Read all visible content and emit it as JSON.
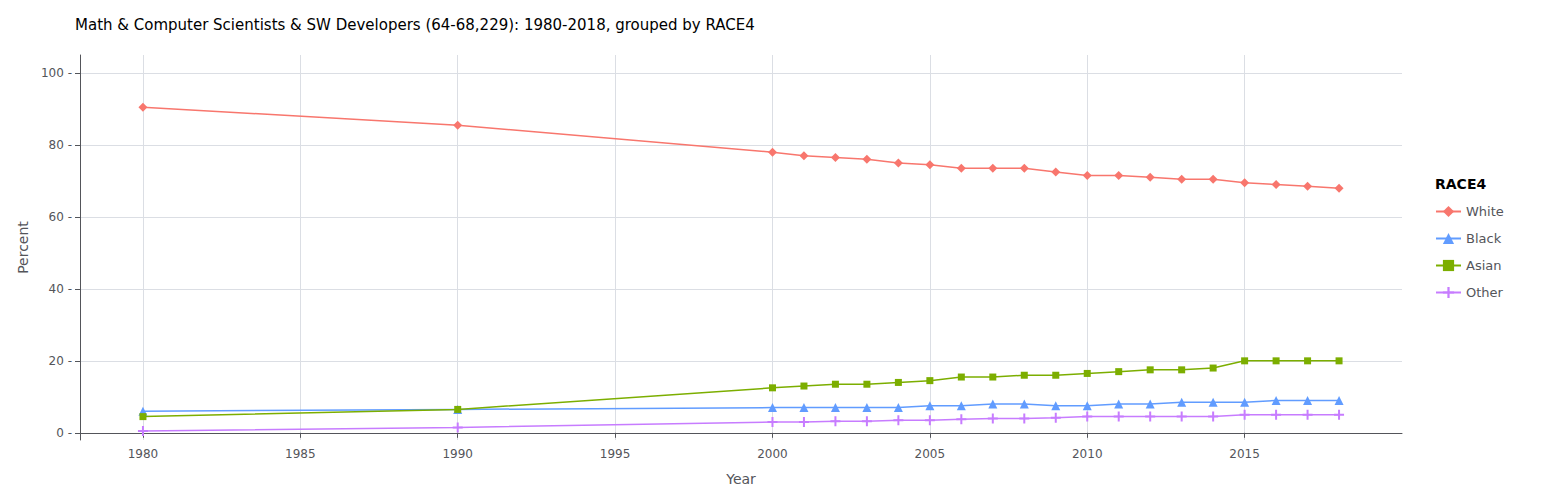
{
  "chart_data": {
    "type": "line",
    "title": "Math & Computer Scientists & SW Developers (64-68,229): 1980-2018, grouped by RACE4",
    "xlabel": "Year",
    "ylabel": "Percent",
    "legend_title": "RACE4",
    "legend": "right",
    "grid": true,
    "x": [
      1980,
      1990,
      2000,
      2001,
      2002,
      2003,
      2004,
      2005,
      2006,
      2007,
      2008,
      2009,
      2010,
      2011,
      2012,
      2013,
      2014,
      2015,
      2016,
      2017,
      2018
    ],
    "series": [
      {
        "name": "White",
        "color": "#F8766D",
        "marker": "diamond",
        "values": [
          90.5,
          85.5,
          78.0,
          77.0,
          76.5,
          76.0,
          75.0,
          74.5,
          73.5,
          73.5,
          73.5,
          72.5,
          71.5,
          71.5,
          71.0,
          70.5,
          70.5,
          69.5,
          69.0,
          68.5,
          68.0
        ]
      },
      {
        "name": "Black",
        "color": "#619CFF",
        "marker": "triangle",
        "values": [
          6.0,
          6.5,
          7.0,
          7.0,
          7.0,
          7.0,
          7.0,
          7.5,
          7.5,
          8.0,
          8.0,
          7.5,
          7.5,
          8.0,
          8.0,
          8.5,
          8.5,
          8.5,
          9.0,
          9.0,
          9.0
        ]
      },
      {
        "name": "Asian",
        "color": "#7CAE00",
        "marker": "square",
        "values": [
          4.5,
          6.5,
          12.5,
          13.0,
          13.5,
          13.5,
          14.0,
          14.5,
          15.5,
          15.5,
          16.0,
          16.0,
          16.5,
          17.0,
          17.5,
          17.5,
          18.0,
          20.0,
          20.0,
          20.0,
          20.0
        ]
      },
      {
        "name": "Other",
        "color": "#C77CFF",
        "marker": "plus",
        "values": [
          0.5,
          1.5,
          3.0,
          3.0,
          3.2,
          3.2,
          3.5,
          3.5,
          3.8,
          4.0,
          4.0,
          4.2,
          4.5,
          4.5,
          4.5,
          4.5,
          4.5,
          5.0,
          5.0,
          5.0,
          5.0
        ]
      }
    ],
    "xlim": [
      1978,
      2020
    ],
    "xticks": [
      1980,
      1985,
      1990,
      1995,
      2000,
      2005,
      2010,
      2015
    ],
    "ylim": [
      -2,
      105
    ],
    "yticks": [
      {
        "value": 0,
        "label": "0 -"
      },
      {
        "value": 20,
        "label": "20 -"
      },
      {
        "value": 40,
        "label": "40 -"
      },
      {
        "value": 60,
        "label": "60 -"
      },
      {
        "value": 80,
        "label": "80 -"
      },
      {
        "value": 100,
        "label": "100 -"
      }
    ]
  }
}
